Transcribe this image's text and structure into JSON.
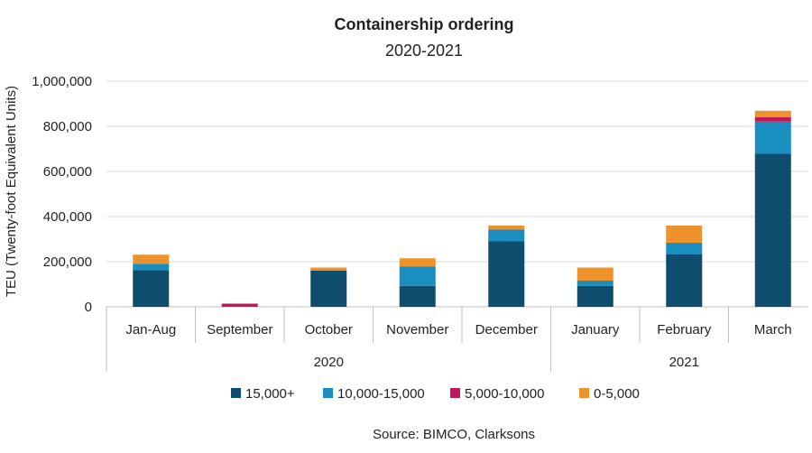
{
  "chart_data": {
    "type": "bar",
    "stacked": true,
    "title": "Containership ordering",
    "subtitle": "2020-2021",
    "ylabel": "TEU (Twenty-foot Equivalent Units)",
    "xlabel": "",
    "ylim": [
      0,
      1000000
    ],
    "yticks": [
      0,
      200000,
      400000,
      600000,
      800000,
      1000000
    ],
    "ytick_labels": [
      "0",
      "200,000",
      "400,000",
      "600,000",
      "800,000",
      "1,000,000"
    ],
    "grid": true,
    "legend_position": "bottom",
    "categories": [
      "Jan-Aug",
      "September",
      "October",
      "November",
      "December",
      "January",
      "February",
      "March"
    ],
    "groups": [
      {
        "label": "2020",
        "categories": [
          "Jan-Aug",
          "September",
          "October",
          "November",
          "December"
        ]
      },
      {
        "label": "2021",
        "categories": [
          "January",
          "February",
          "March"
        ]
      }
    ],
    "series": [
      {
        "name": "15,000+",
        "color": "#0e4d6e",
        "values": [
          163000,
          0,
          160000,
          93000,
          290000,
          93000,
          232000,
          678000
        ]
      },
      {
        "name": "10,000-15,000",
        "color": "#1b8ec0",
        "values": [
          28000,
          0,
          0,
          85000,
          52000,
          23000,
          52000,
          143000
        ]
      },
      {
        "name": "5,000-10,000",
        "color": "#c2185b",
        "values": [
          0,
          14000,
          0,
          0,
          0,
          0,
          0,
          20000
        ]
      },
      {
        "name": "0-5,000",
        "color": "#f0922b",
        "values": [
          40000,
          0,
          14000,
          37000,
          18000,
          58000,
          76000,
          28000
        ]
      }
    ],
    "source": "Source: BIMCO, Clarksons"
  }
}
